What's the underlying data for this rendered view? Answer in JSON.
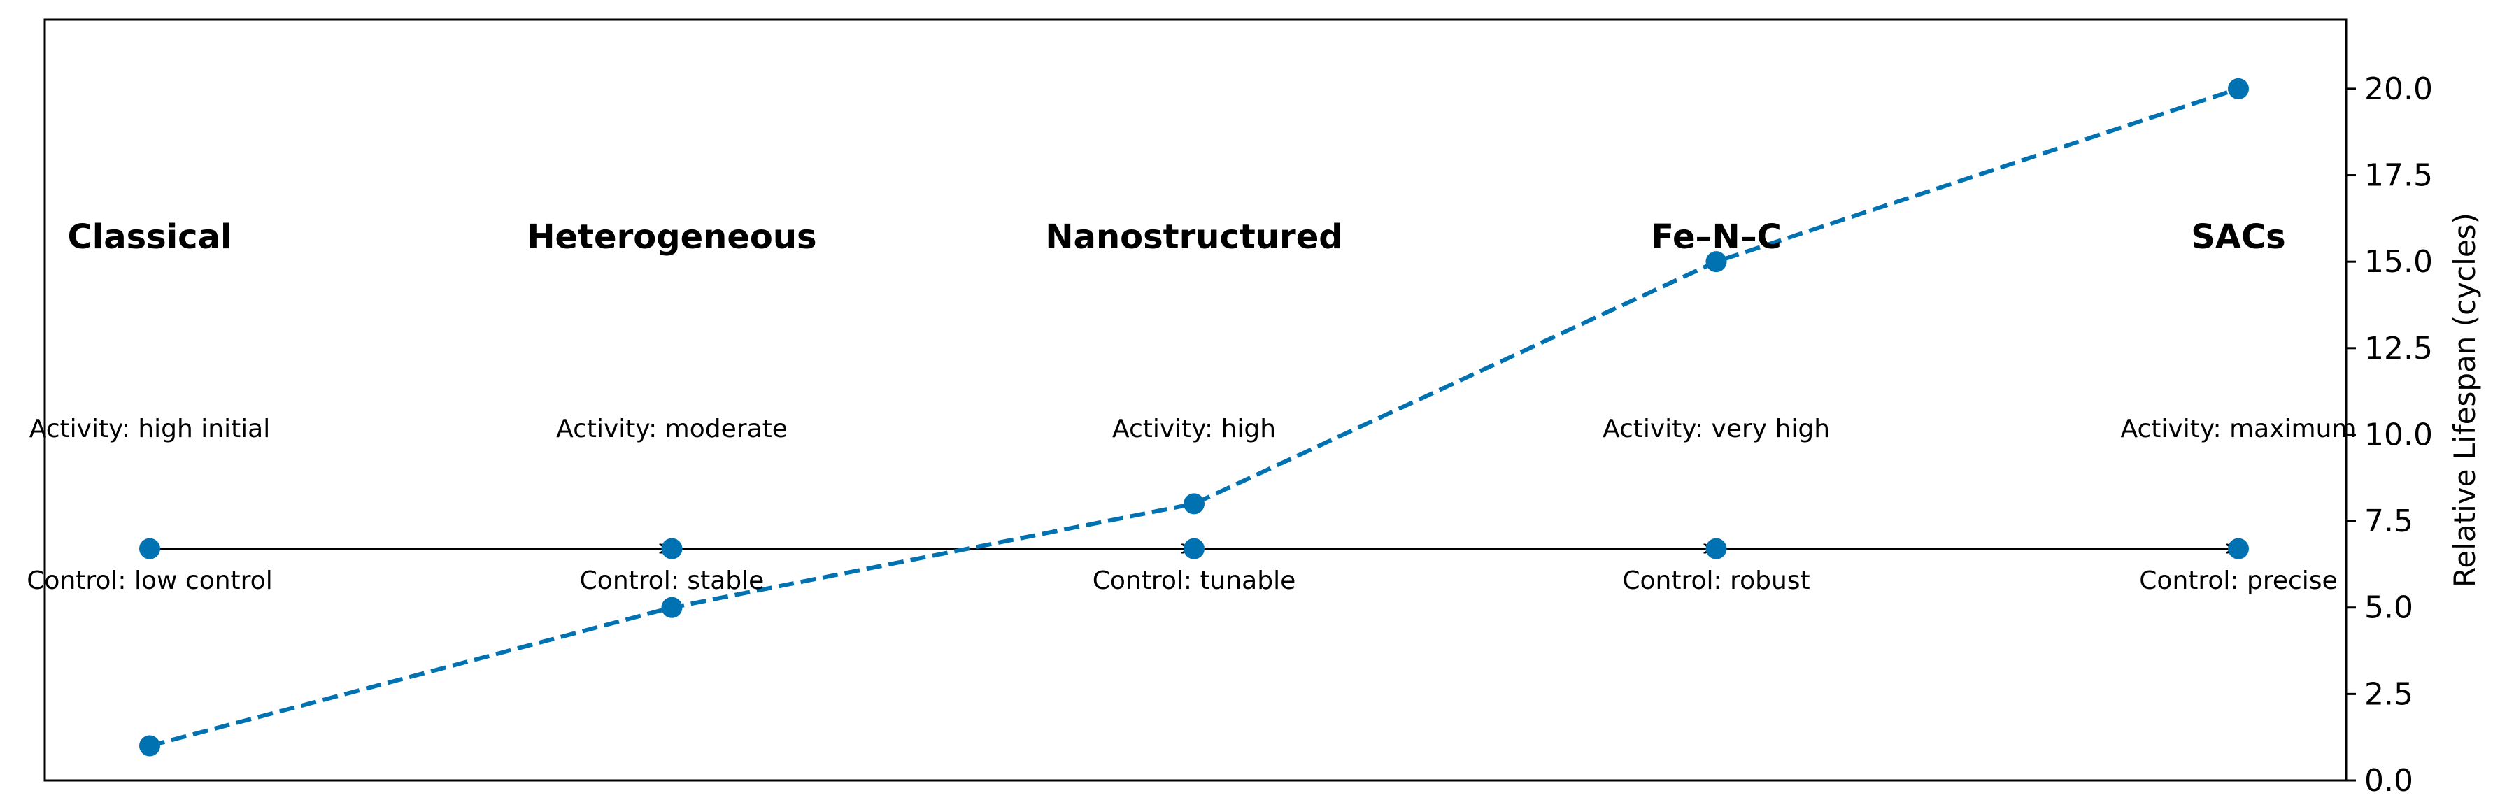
{
  "chart_data": {
    "type": "line",
    "title": "",
    "x": [
      "Classical",
      "Heterogeneous",
      "Nanostructured",
      "Fe–N–C",
      "SACs"
    ],
    "stages": [
      {
        "name": "Classical",
        "activity": "Activity: high initial",
        "control": "Control: low control"
      },
      {
        "name": "Heterogeneous",
        "activity": "Activity: moderate",
        "control": "Control: stable"
      },
      {
        "name": "Nanostructured",
        "activity": "Activity: high",
        "control": "Control: tunable"
      },
      {
        "name": "Fe–N–C",
        "activity": "Activity: very high",
        "control": "Control: robust"
      },
      {
        "name": "SACs",
        "activity": "Activity: maximum",
        "control": "Control: precise"
      }
    ],
    "series": [
      {
        "values": [
          1,
          5,
          8,
          15,
          20
        ],
        "color": "#0072b2",
        "style": "dashed",
        "axis": "right"
      }
    ],
    "ylabel": "Relative Lifespan (cycles)",
    "ylim": [
      0,
      22
    ],
    "yticks": [
      "0.0",
      "2.5",
      "5.0",
      "7.5",
      "10.0",
      "12.5",
      "15.0",
      "17.5",
      "20.0"
    ],
    "timeline_level": 6.7,
    "grid": false,
    "legend": "none"
  },
  "colors": {
    "series": "#0072b2",
    "axes": "#000000",
    "background": "#ffffff"
  }
}
